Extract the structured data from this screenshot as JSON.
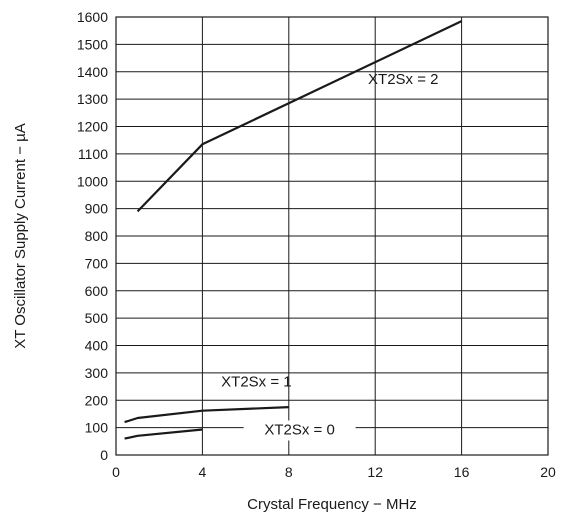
{
  "chart_data": {
    "type": "line",
    "title": "",
    "xlabel": "Crystal Frequency − MHz",
    "ylabel": "XT Oscillator Supply Current  − µA",
    "xlim": [
      0,
      20
    ],
    "ylim": [
      0,
      1600
    ],
    "xticks": [
      0,
      4,
      8,
      12,
      16,
      20
    ],
    "yticks": [
      0,
      100,
      200,
      300,
      400,
      500,
      600,
      700,
      800,
      900,
      1000,
      1100,
      1200,
      1300,
      1400,
      1500,
      1600
    ],
    "grid": true,
    "legend": "none",
    "series": [
      {
        "name": "XT2Sx = 2",
        "x": [
          1,
          4,
          16
        ],
        "y": [
          890,
          1135,
          1585
        ]
      },
      {
        "name": "XT2Sx = 1",
        "x": [
          0.4,
          1,
          4,
          8
        ],
        "y": [
          120,
          135,
          162,
          175
        ]
      },
      {
        "name": "XT2Sx = 0",
        "x": [
          0.4,
          1,
          4
        ],
        "y": [
          60,
          70,
          93
        ]
      }
    ],
    "colors": {
      "line": "#1a1a1a",
      "grid": "#1a1a1a",
      "background": "#ffffff"
    }
  }
}
